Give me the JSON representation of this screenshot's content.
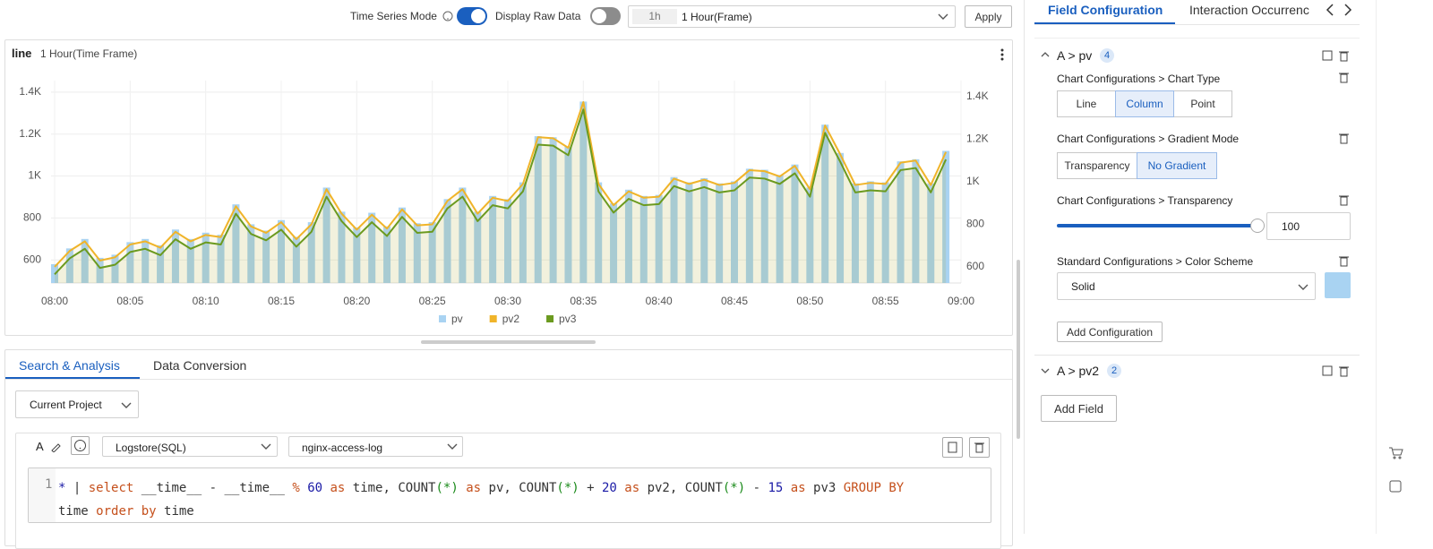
{
  "toolbar": {
    "time_series_mode": "Time Series Mode",
    "display_raw_data": "Display Raw Data",
    "range_short": "1h",
    "range": "1 Hour(Frame)",
    "apply": "Apply"
  },
  "panel": {
    "title": "line",
    "subtitle": "1 Hour(Time Frame)"
  },
  "chart_data": {
    "type": "bar",
    "xticks": [
      "08:00",
      "08:05",
      "08:10",
      "08:15",
      "08:20",
      "08:25",
      "08:30",
      "08:35",
      "08:40",
      "08:45",
      "08:50",
      "08:55",
      "09:00"
    ],
    "ylim": [
      490,
      1455
    ],
    "yticks": [
      600,
      800,
      {
        "value": 1000,
        "label": "1K"
      },
      {
        "value": 1200,
        "label": "1.2K"
      },
      {
        "value": 1400,
        "label": "1.4K"
      }
    ],
    "y2lim": [
      524,
      1476
    ],
    "y2ticks": [
      600,
      800,
      {
        "value": 1000,
        "label": "1K"
      },
      {
        "value": 1200,
        "label": "1.2K"
      },
      {
        "value": 1400,
        "label": "1.4K"
      }
    ],
    "grid": true,
    "legend": "bottom",
    "series": [
      {
        "name": "pv",
        "color": "#a9d3f2",
        "values": [
          580,
          655,
          700,
          610,
          625,
          685,
          700,
          670,
          745,
          700,
          730,
          720,
          865,
          770,
          740,
          790,
          710,
          780,
          945,
          830,
          755,
          825,
          760,
          850,
          775,
          780,
          890,
          945,
          830,
          905,
          890,
          970,
          1190,
          1185,
          1140,
          1355,
          970,
          870,
          935,
          905,
          910,
          995,
          970,
          990,
          965,
          975,
          1035,
          1030,
          1005,
          1055,
          945,
          1245,
          1110,
          965,
          975,
          970,
          1070,
          1080,
          965,
          1120
        ]
      },
      {
        "name": "pv2",
        "color": "#f0b429",
        "type": "line",
        "axis": "y2",
        "values": [
          600,
          675,
          720,
          630,
          645,
          705,
          720,
          690,
          765,
          720,
          750,
          740,
          885,
          790,
          760,
          810,
          730,
          800,
          965,
          850,
          775,
          845,
          780,
          870,
          795,
          800,
          910,
          965,
          850,
          925,
          910,
          990,
          1210,
          1205,
          1160,
          1375,
          990,
          890,
          955,
          925,
          930,
          1015,
          990,
          1010,
          985,
          995,
          1055,
          1050,
          1025,
          1075,
          965,
          1265,
          1130,
          985,
          995,
          990,
          1090,
          1100,
          985,
          1140
        ]
      },
      {
        "name": "pv3",
        "color": "#6b9a1f",
        "type": "line",
        "axis": "y2",
        "values": [
          565,
          640,
          685,
          595,
          610,
          670,
          685,
          655,
          730,
          685,
          715,
          705,
          850,
          755,
          725,
          775,
          695,
          765,
          930,
          815,
          740,
          810,
          745,
          835,
          760,
          765,
          875,
          930,
          815,
          890,
          875,
          955,
          1175,
          1170,
          1125,
          1340,
          955,
          855,
          920,
          890,
          895,
          980,
          955,
          975,
          950,
          960,
          1020,
          1015,
          990,
          1040,
          930,
          1230,
          1095,
          950,
          960,
          955,
          1055,
          1065,
          950,
          1105
        ]
      }
    ]
  },
  "tabs": [
    "Search & Analysis",
    "Data Conversion"
  ],
  "project": "Current Project",
  "query": {
    "store_type": "Logstore(SQL)",
    "logstore": "nginx-access-log",
    "line_number": "1",
    "lines": [
      [
        {
          "text": "*",
          "color": "#1a1aa6"
        },
        {
          "text": " | ",
          "color": "#333333"
        },
        {
          "text": "select",
          "color": "#c5501c"
        },
        {
          "text": " __time__ - __time__ ",
          "color": "#333333"
        },
        {
          "text": "%",
          "color": "#c5501c"
        },
        {
          "text": " 60 ",
          "color": "#1a1aa6"
        },
        {
          "text": "as",
          "color": "#c5501c"
        },
        {
          "text": " time, COUNT",
          "color": "#333333"
        },
        {
          "text": "(*)",
          "color": "#1a8a1a"
        },
        {
          "text": " ",
          "color": "#333333"
        },
        {
          "text": "as",
          "color": "#c5501c"
        },
        {
          "text": " pv, COUNT",
          "color": "#333333"
        },
        {
          "text": "(*)",
          "color": "#1a8a1a"
        },
        {
          "text": " + ",
          "color": "#333333"
        },
        {
          "text": "20",
          "color": "#1a1aa6"
        },
        {
          "text": " ",
          "color": "#333333"
        },
        {
          "text": "as",
          "color": "#c5501c"
        },
        {
          "text": " pv2, COUNT",
          "color": "#333333"
        },
        {
          "text": "(*)",
          "color": "#1a8a1a"
        },
        {
          "text": " - ",
          "color": "#333333"
        },
        {
          "text": "15",
          "color": "#1a1aa6"
        },
        {
          "text": " ",
          "color": "#333333"
        },
        {
          "text": "as",
          "color": "#c5501c"
        },
        {
          "text": " pv3 ",
          "color": "#333333"
        },
        {
          "text": "GROUP BY",
          "color": "#c5501c"
        }
      ],
      [
        {
          "text": "time ",
          "color": "#333333"
        },
        {
          "text": "order by",
          "color": "#c5501c"
        },
        {
          "text": " time",
          "color": "#333333"
        }
      ]
    ]
  },
  "side_tabs": [
    "Field Configuration",
    "Interaction Occurrenc"
  ],
  "groups": [
    {
      "title": "A > pv",
      "count": "4"
    },
    {
      "title": "A > pv2",
      "count": "2"
    }
  ],
  "configs": {
    "chart_type": {
      "label": "Chart Configurations > Chart Type",
      "options": [
        "Line",
        "Column",
        "Point"
      ],
      "selected": 1
    },
    "gradient": {
      "label": "Chart Configurations > Gradient Mode",
      "options": [
        "Transparency",
        "No Gradient"
      ],
      "selected": 1
    },
    "transparency": {
      "label": "Chart Configurations > Transparency",
      "value": "100"
    },
    "color_scheme": {
      "label": "Standard Configurations > Color Scheme",
      "value": "Solid",
      "color": "#a9d3f2"
    }
  },
  "add_configuration": "Add Configuration",
  "add_field": "Add Field"
}
